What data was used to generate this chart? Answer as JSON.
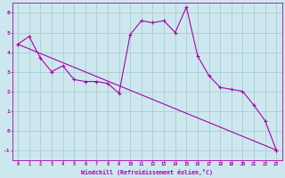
{
  "xlabel": "Windchill (Refroidissement éolien,°C)",
  "bg_color": "#cce8ee",
  "grid_color": "#aaccd4",
  "line_color": "#aa00aa",
  "line1_x": [
    0,
    1,
    2,
    3,
    4,
    5,
    6,
    7,
    8,
    9,
    10,
    11,
    12,
    13,
    14,
    15,
    16,
    17,
    18,
    19,
    20,
    21,
    22,
    23
  ],
  "line1_y": [
    4.4,
    4.8,
    3.7,
    3.0,
    3.3,
    2.6,
    2.5,
    2.5,
    2.4,
    1.9,
    4.9,
    5.6,
    5.5,
    5.6,
    5.0,
    6.3,
    3.8,
    2.8,
    2.2,
    2.1,
    2.0,
    1.3,
    0.5,
    -1.0
  ],
  "line2_x": [
    0,
    23
  ],
  "line2_y": [
    4.4,
    -1.0
  ],
  "ylim": [
    -1.5,
    6.5
  ],
  "xlim": [
    -0.5,
    23.5
  ],
  "yticks": [
    -1,
    0,
    1,
    2,
    3,
    4,
    5,
    6
  ],
  "xticks": [
    0,
    1,
    2,
    3,
    4,
    5,
    6,
    7,
    8,
    9,
    10,
    11,
    12,
    13,
    14,
    15,
    16,
    17,
    18,
    19,
    20,
    21,
    22,
    23
  ]
}
